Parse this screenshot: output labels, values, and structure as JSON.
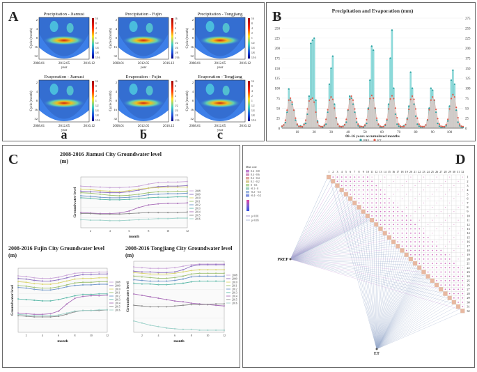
{
  "panel_labels": {
    "a": "A",
    "b": "B",
    "c": "C",
    "d": "D"
  },
  "panel_a": {
    "plots": [
      {
        "title": "Precipitation - Jiamusi"
      },
      {
        "title": "Precipitation - Fujin"
      },
      {
        "title": "Precipitation - Tongjiang"
      },
      {
        "title": "Evaporation - Jiamusi"
      },
      {
        "title": "Evaporation - Fujin"
      },
      {
        "title": "Evaporation - Tongjiang"
      }
    ],
    "ylabel": "Cycle (month)",
    "xlabel": "year",
    "x_ticks": [
      "2008.01",
      "2012.05",
      "2016.12"
    ],
    "y_ticks": [
      "2",
      "4",
      "8",
      "16",
      "32"
    ],
    "colorbar_ticks": [
      "16",
      "8",
      "4",
      "2",
      "1",
      "1/2",
      "1/4",
      "1/8",
      "1/16"
    ],
    "column_letters": [
      "a",
      "b",
      "c"
    ]
  },
  "chart_data": [
    {
      "type": "bar",
      "title": "Precipitation and Evaporation (mm)",
      "xlabel": "08~16 years accumulated months",
      "x_ticks": [
        10,
        20,
        30,
        40,
        50,
        60,
        70,
        80,
        90,
        100
      ],
      "y_ticks": [
        0,
        25,
        50,
        75,
        100,
        125,
        150,
        175,
        200,
        225,
        250,
        275
      ],
      "ylim": [
        0,
        275
      ],
      "xlim": [
        1,
        108
      ],
      "legend": [
        "PRE",
        "ET"
      ],
      "colors": {
        "pre": "#8fdcdc",
        "pre_marker": "#2aa0a0",
        "et": "#f4a79a",
        "et_marker": "#e05a4a"
      },
      "series": [
        {
          "name": "PRE",
          "values": [
            5,
            8,
            14,
            40,
            98,
            70,
            60,
            45,
            20,
            8,
            4,
            6,
            3,
            10,
            12,
            35,
            80,
            212,
            220,
            225,
            70,
            18,
            6,
            4,
            2,
            6,
            10,
            40,
            110,
            150,
            180,
            60,
            25,
            10,
            4,
            3,
            5,
            8,
            15,
            45,
            80,
            75,
            60,
            40,
            15,
            6,
            3,
            4,
            2,
            6,
            12,
            50,
            120,
            205,
            195,
            50,
            20,
            8,
            3,
            2,
            4,
            7,
            20,
            60,
            175,
            245,
            100,
            35,
            10,
            5,
            3,
            4,
            6,
            9,
            25,
            55,
            140,
            100,
            60,
            30,
            10,
            5,
            3,
            3,
            4,
            8,
            20,
            50,
            100,
            95,
            70,
            40,
            12,
            5,
            2,
            3,
            3,
            6,
            18,
            55,
            120,
            145,
            110,
            45,
            15,
            6,
            3,
            2
          ]
        },
        {
          "name": "ET",
          "values": [
            5,
            8,
            20,
            45,
            70,
            75,
            65,
            45,
            25,
            10,
            5,
            4,
            4,
            9,
            20,
            48,
            68,
            72,
            75,
            65,
            40,
            15,
            6,
            4,
            4,
            8,
            22,
            46,
            70,
            78,
            72,
            50,
            26,
            10,
            5,
            4,
            4,
            9,
            22,
            46,
            72,
            80,
            70,
            48,
            24,
            10,
            5,
            4,
            4,
            8,
            21,
            47,
            74,
            82,
            75,
            50,
            25,
            10,
            5,
            4,
            4,
            9,
            22,
            48,
            73,
            81,
            74,
            50,
            26,
            10,
            5,
            4,
            4,
            9,
            22,
            47,
            72,
            80,
            72,
            48,
            25,
            10,
            5,
            4,
            4,
            8,
            21,
            46,
            70,
            78,
            70,
            47,
            24,
            10,
            5,
            4,
            4,
            9,
            22,
            48,
            74,
            84,
            78,
            52,
            26,
            10,
            5,
            4
          ]
        }
      ]
    },
    {
      "type": "line",
      "title": "2008-2016 Jiamusi City Groundwater level",
      "unit": "(m)",
      "xlabel": "month",
      "ylabel": "Groundwater level",
      "x": [
        1,
        2,
        3,
        4,
        5,
        6,
        7,
        8,
        9,
        10,
        11,
        12
      ],
      "x_ticks": [
        2,
        4,
        6,
        8,
        10,
        12
      ],
      "ylim": [
        0,
        10
      ],
      "series": [
        {
          "name": "2008",
          "color": "#c9a3d8",
          "values": [
            8.2,
            8.1,
            8.0,
            7.9,
            7.9,
            8.0,
            8.2,
            8.6,
            8.9,
            9.0,
            9.0,
            9.1
          ]
        },
        {
          "name": "2009",
          "color": "#8a6cc0",
          "values": [
            7.2,
            7.1,
            7.0,
            6.9,
            6.9,
            7.1,
            7.4,
            7.8,
            8.1,
            8.2,
            8.2,
            8.3
          ]
        },
        {
          "name": "2010",
          "color": "#d9d46a",
          "values": [
            7.6,
            7.5,
            7.3,
            7.2,
            7.1,
            7.3,
            7.6,
            7.8,
            7.9,
            8.0,
            8.0,
            8.0
          ]
        },
        {
          "name": "2011",
          "color": "#9cc06e",
          "values": [
            6.9,
            6.8,
            6.6,
            6.4,
            6.3,
            6.4,
            6.6,
            6.9,
            7.1,
            7.1,
            7.2,
            7.2
          ]
        },
        {
          "name": "2012",
          "color": "#6a92c8",
          "values": [
            6.3,
            6.2,
            6.0,
            5.9,
            5.9,
            6.0,
            6.2,
            6.5,
            6.6,
            6.7,
            6.7,
            6.8
          ]
        },
        {
          "name": "2013",
          "color": "#5ab8a8",
          "values": [
            5.9,
            5.8,
            5.6,
            5.5,
            5.5,
            5.6,
            5.7,
            5.9,
            6.0,
            6.0,
            6.1,
            6.1
          ]
        },
        {
          "name": "2014",
          "color": "#a86cb8",
          "values": [
            3.0,
            2.9,
            2.8,
            2.8,
            2.9,
            3.3,
            4.0,
            4.5,
            4.7,
            4.8,
            4.8,
            4.9
          ]
        },
        {
          "name": "2015",
          "color": "#888888",
          "values": [
            2.8,
            2.8,
            2.7,
            2.7,
            2.7,
            2.8,
            2.9,
            3.0,
            3.0,
            3.0,
            3.0,
            3.1
          ]
        },
        {
          "name": "2016",
          "color": "#9ad0c8",
          "values": [
            1.6,
            1.5,
            1.5,
            1.4,
            1.4,
            1.5,
            1.6,
            1.7,
            1.8,
            1.8,
            1.9,
            1.9
          ]
        }
      ]
    },
    {
      "type": "line",
      "title": "2008-2016 Fujin City Groundwater level",
      "unit": "(m)",
      "xlabel": "month",
      "ylabel": "Groundwater level",
      "x": [
        1,
        2,
        3,
        4,
        5,
        6,
        7,
        8,
        9,
        10,
        11,
        12
      ],
      "x_ticks": [
        2,
        4,
        6,
        8,
        10,
        12
      ],
      "ylim": [
        0,
        10
      ],
      "series": [
        {
          "name": "2008",
          "color": "#c9a3d8",
          "values": [
            8.8,
            8.7,
            8.5,
            8.4,
            8.4,
            8.6,
            8.9,
            9.2,
            9.3,
            9.3,
            9.4,
            9.4
          ]
        },
        {
          "name": "2009",
          "color": "#8a6cc0",
          "values": [
            8.4,
            8.3,
            8.1,
            8.0,
            8.0,
            8.2,
            8.5,
            8.8,
            9.0,
            9.0,
            9.1,
            9.1
          ]
        },
        {
          "name": "2010",
          "color": "#d9d46a",
          "values": [
            7.9,
            7.8,
            7.6,
            7.5,
            7.5,
            7.7,
            8.0,
            8.3,
            8.4,
            8.4,
            8.5,
            8.5
          ]
        },
        {
          "name": "2011",
          "color": "#9cc06e",
          "values": [
            7.3,
            7.2,
            7.0,
            6.9,
            6.9,
            7.1,
            7.4,
            7.7,
            7.8,
            7.8,
            7.9,
            7.9
          ]
        },
        {
          "name": "2012",
          "color": "#6a92c8",
          "values": [
            7.0,
            6.9,
            6.7,
            6.6,
            6.6,
            6.8,
            7.1,
            7.3,
            7.4,
            7.4,
            7.5,
            7.5
          ]
        },
        {
          "name": "2013",
          "color": "#5ab8a8",
          "values": [
            5.2,
            5.1,
            5.0,
            4.9,
            4.9,
            5.1,
            5.4,
            5.7,
            5.9,
            5.9,
            6.0,
            6.0
          ]
        },
        {
          "name": "2014",
          "color": "#a86cb8",
          "values": [
            3.0,
            2.9,
            2.8,
            2.8,
            2.9,
            3.3,
            4.4,
            5.3,
            5.6,
            5.7,
            5.7,
            5.8
          ]
        },
        {
          "name": "2015",
          "color": "#888888",
          "values": [
            2.6,
            2.5,
            2.4,
            2.4,
            2.4,
            2.5,
            2.8,
            3.2,
            3.4,
            3.4,
            3.4,
            3.5
          ]
        },
        {
          "name": "2016",
          "color": "#9ad0c8",
          "values": [
            2.8,
            2.7,
            2.6,
            2.6,
            2.6,
            2.7,
            3.0,
            3.3,
            3.4,
            3.4,
            3.5,
            3.5
          ]
        }
      ]
    },
    {
      "type": "line",
      "title": "2008-2016 Tongjiang City Groundwater level",
      "unit": "(m)",
      "xlabel": "month",
      "ylabel": "Groundwater level",
      "x": [
        1,
        2,
        3,
        4,
        5,
        6,
        7,
        8,
        9,
        10,
        11,
        12
      ],
      "x_ticks": [
        2,
        4,
        6,
        8,
        10,
        12
      ],
      "ylim": [
        0,
        10
      ],
      "series": [
        {
          "name": "2008",
          "color": "#c9a3d8",
          "values": [
            9.2,
            9.1,
            9.0,
            9.0,
            9.0,
            9.1,
            9.3,
            9.5,
            9.6,
            9.6,
            9.6,
            9.6
          ]
        },
        {
          "name": "2009",
          "color": "#8a6cc0",
          "values": [
            8.6,
            8.5,
            8.5,
            8.4,
            8.4,
            8.5,
            8.8,
            9.3,
            9.5,
            9.5,
            9.5,
            9.5
          ]
        },
        {
          "name": "2010",
          "color": "#d9d46a",
          "values": [
            8.4,
            8.3,
            8.2,
            8.2,
            8.2,
            8.3,
            8.5,
            8.7,
            8.8,
            8.8,
            8.8,
            8.8
          ]
        },
        {
          "name": "2011",
          "color": "#9cc06e",
          "values": [
            7.9,
            7.8,
            7.7,
            7.6,
            7.6,
            7.7,
            7.9,
            8.2,
            8.3,
            8.3,
            8.3,
            8.3
          ]
        },
        {
          "name": "2012",
          "color": "#6a92c8",
          "values": [
            7.4,
            7.3,
            7.2,
            7.2,
            7.2,
            7.3,
            7.5,
            7.8,
            7.9,
            7.9,
            7.9,
            7.9
          ]
        },
        {
          "name": "2013",
          "color": "#5ab8a8",
          "values": [
            6.9,
            6.8,
            6.8,
            6.7,
            6.7,
            6.8,
            6.9,
            7.1,
            7.2,
            7.2,
            7.2,
            7.2
          ]
        },
        {
          "name": "2014",
          "color": "#a86cb8",
          "values": [
            5.4,
            5.2,
            5.0,
            4.8,
            4.6,
            4.4,
            4.3,
            4.1,
            4.0,
            3.9,
            3.8,
            3.7
          ]
        },
        {
          "name": "2015",
          "color": "#888888",
          "values": [
            3.8,
            3.7,
            3.6,
            3.6,
            3.6,
            3.7,
            3.8,
            3.9,
            3.9,
            3.9,
            4.0,
            4.0
          ]
        },
        {
          "name": "2016",
          "color": "#9ad0c8",
          "values": [
            1.6,
            1.3,
            1.0,
            0.8,
            0.6,
            0.5,
            0.4,
            0.4,
            0.3,
            0.3,
            0.3,
            0.3
          ]
        }
      ]
    }
  ],
  "panel_d": {
    "left_node": "PREP",
    "bottom_node": "ET",
    "count": 32,
    "legend_title": "Dist corr",
    "legend_items": [
      "0.6 - 0.8",
      "0.4 - 0.6",
      "0.2 - 0.4",
      "0.1 - 0.2",
      "0 - 0.1",
      "-0.1 - 0",
      "-0.2 - -0.1",
      "-0.4 - -0.2"
    ],
    "legend_pvals": [
      "p<0.01",
      "p<0.05"
    ],
    "colors": {
      "edge": "#9aaccc",
      "edge_sig": "#c89ad8"
    }
  }
}
